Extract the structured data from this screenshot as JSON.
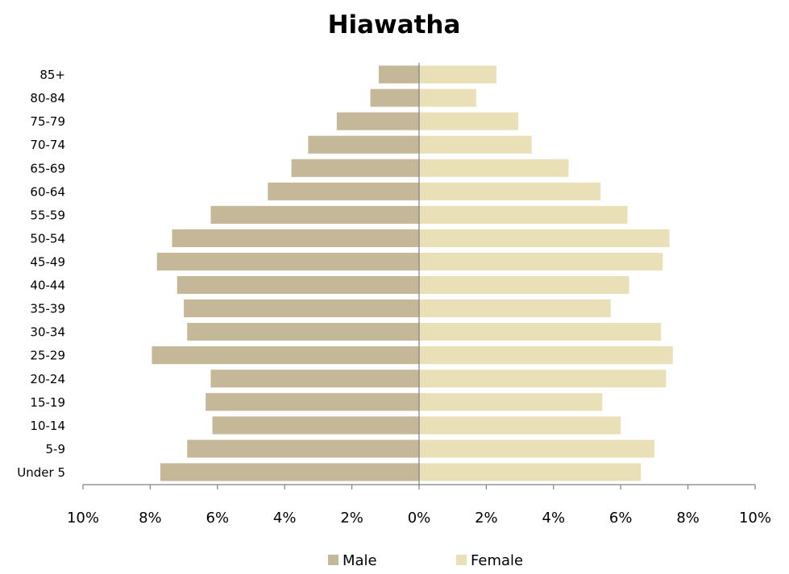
{
  "chart_data": {
    "type": "bar",
    "orientation": "horizontal-pyramid",
    "title": "Hiawatha",
    "categories": [
      "85+",
      "80-84",
      "75-79",
      "70-74",
      "65-69",
      "60-64",
      "55-59",
      "50-54",
      "45-49",
      "40-44",
      "35-39",
      "30-34",
      "25-29",
      "20-24",
      "15-19",
      "10-14",
      "5-9",
      "Under 5"
    ],
    "series": [
      {
        "name": "Male",
        "color": "#c4b898",
        "values": [
          1.2,
          1.45,
          2.45,
          3.3,
          3.8,
          4.5,
          6.2,
          7.35,
          7.8,
          7.2,
          7.0,
          6.9,
          7.95,
          6.2,
          6.35,
          6.15,
          6.9,
          7.7
        ]
      },
      {
        "name": "Female",
        "color": "#e9e0b8",
        "values": [
          2.3,
          1.7,
          2.95,
          3.35,
          4.45,
          5.4,
          6.2,
          7.45,
          7.25,
          6.25,
          5.7,
          7.2,
          7.55,
          7.35,
          5.45,
          6.0,
          7.0,
          6.6
        ]
      }
    ],
    "xlim": [
      -10,
      10
    ],
    "x_ticks": [
      "10%",
      "8%",
      "6%",
      "4%",
      "2%",
      "0%",
      "2%",
      "4%",
      "6%",
      "8%",
      "10%"
    ],
    "xlabel": "",
    "ylabel": "",
    "grid": false,
    "legend": {
      "placement": "bottom",
      "entries": [
        "Male",
        "Female"
      ]
    }
  }
}
